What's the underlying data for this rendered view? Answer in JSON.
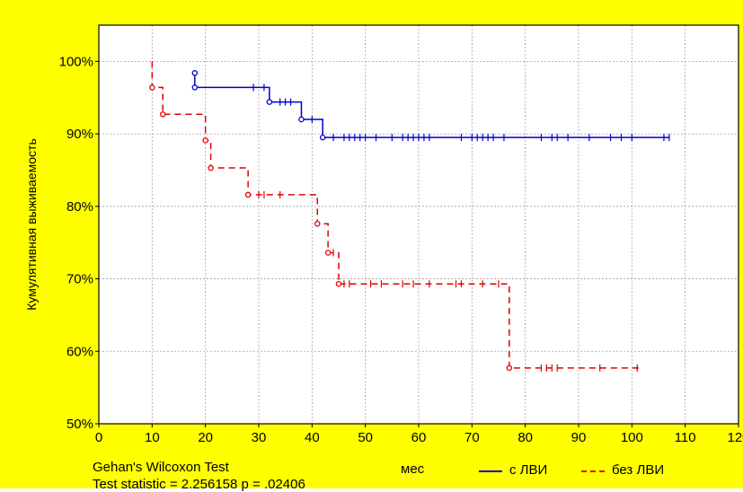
{
  "colors": {
    "frame_bg": "#FFFF00",
    "plot_bg": "#FFFFFF",
    "grid": "#A0A0A0",
    "series_1": "#0000CC",
    "series_2": "#E00000"
  },
  "footer": {
    "test_name": "Gehan's Wilcoxon Test",
    "statistic": "Test statistic = 2.256158 p = .02406"
  },
  "chart_data": {
    "type": "line",
    "step": true,
    "xlabel": "мес",
    "ylabel": "Кумулятивная выживаемость",
    "xlim": [
      0,
      120
    ],
    "ylim": [
      0.5,
      1.05
    ],
    "xticks": [
      0,
      10,
      20,
      30,
      40,
      50,
      60,
      70,
      80,
      90,
      100,
      110,
      120
    ],
    "yticks": [
      0.5,
      0.6,
      0.7,
      0.8,
      0.9,
      1.0
    ],
    "ytick_labels": [
      "50%",
      "60%",
      "70%",
      "80%",
      "90%",
      "100%"
    ],
    "grid": true,
    "legend_position": "bottom-right",
    "series": [
      {
        "name": "с ЛВИ",
        "line_style": "solid",
        "steps": [
          [
            0,
            0.984
          ],
          [
            18,
            0.964
          ],
          [
            32,
            0.944
          ],
          [
            38,
            0.92
          ],
          [
            42,
            0.895
          ],
          [
            107,
            0.895
          ]
        ],
        "events": [
          [
            18,
            0.984
          ],
          [
            18,
            0.964
          ],
          [
            32,
            0.944
          ],
          [
            38,
            0.92
          ],
          [
            42,
            0.895
          ]
        ],
        "censored": [
          29,
          31,
          34,
          35,
          36,
          40,
          44,
          46,
          47,
          48,
          49,
          50,
          52,
          55,
          57,
          58,
          59,
          60,
          61,
          62,
          68,
          70,
          71,
          72,
          73,
          74,
          76,
          83,
          85,
          86,
          88,
          92,
          96,
          98,
          100,
          106,
          107
        ]
      },
      {
        "name": "без ЛВИ",
        "line_style": "dashed",
        "steps": [
          [
            0,
            1.0
          ],
          [
            10,
            0.964
          ],
          [
            12,
            0.927
          ],
          [
            20,
            0.891
          ],
          [
            21,
            0.853
          ],
          [
            28,
            0.816
          ],
          [
            41,
            0.776
          ],
          [
            43,
            0.736
          ],
          [
            45,
            0.693
          ],
          [
            77,
            0.577
          ],
          [
            102,
            0.577
          ]
        ],
        "events": [
          [
            10,
            0.964
          ],
          [
            12,
            0.927
          ],
          [
            20,
            0.891
          ],
          [
            21,
            0.853
          ],
          [
            28,
            0.816
          ],
          [
            41,
            0.776
          ],
          [
            43,
            0.736
          ],
          [
            45,
            0.693
          ],
          [
            77,
            0.577
          ]
        ],
        "censored": [
          30,
          31,
          34,
          44,
          46,
          47,
          51,
          53,
          57,
          59,
          62,
          67,
          68,
          72,
          75,
          83,
          84,
          85,
          86,
          94,
          101
        ]
      }
    ]
  }
}
